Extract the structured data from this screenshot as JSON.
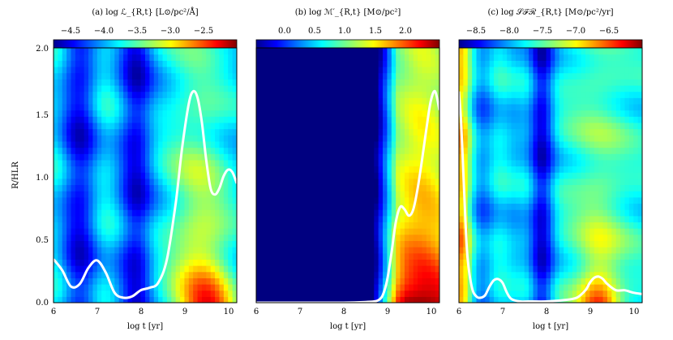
{
  "chart_data": [
    {
      "type": "heatmap",
      "title": "(a) log ℒ_{R,t} [L⊙/pc²/Å]",
      "xlabel": "log t [yr]",
      "ylabel": "R/HLR",
      "xlim": [
        6.0,
        10.2
      ],
      "ylim": [
        0.0,
        2.05
      ],
      "x_ticks": [
        "6",
        "7",
        "8",
        "9",
        "10"
      ],
      "y_ticks": [
        "0.0",
        "0.5",
        "1.0",
        "1.5",
        "2.0"
      ],
      "colorbar": {
        "range": [
          -4.9,
          -2.15
        ],
        "ticks": [
          "−4.5",
          "−4.0",
          "−3.5",
          "−3.0",
          "−2.5"
        ],
        "colormap": "jet"
      },
      "curve": {
        "color": "#ffffff",
        "x": [
          6.0,
          6.2,
          6.4,
          6.6,
          6.8,
          7.0,
          7.2,
          7.4,
          7.6,
          7.8,
          8.0,
          8.2,
          8.4,
          8.6,
          8.8,
          8.95,
          9.1,
          9.2,
          9.3,
          9.4,
          9.5,
          9.6,
          9.7,
          9.8,
          9.9,
          10.0,
          10.1,
          10.2
        ],
        "y": [
          0.35,
          0.26,
          0.13,
          0.15,
          0.28,
          0.34,
          0.24,
          0.08,
          0.04,
          0.05,
          0.1,
          0.12,
          0.16,
          0.35,
          0.8,
          1.25,
          1.6,
          1.7,
          1.65,
          1.45,
          1.15,
          0.92,
          0.87,
          0.92,
          1.02,
          1.07,
          1.05,
          0.96
        ]
      }
    },
    {
      "type": "heatmap",
      "title": "(b) log ℳ′_{R,t} [M⊙/pc²]",
      "xlabel": "log t [yr]",
      "ylabel": "",
      "xlim": [
        6.0,
        10.2
      ],
      "ylim": [
        0.0,
        2.05
      ],
      "x_ticks": [
        "6",
        "7",
        "8",
        "9",
        "10"
      ],
      "y_ticks": [],
      "colorbar": {
        "range": [
          -0.35,
          2.45
        ],
        "ticks": [
          "0.0",
          "0.5",
          "1.0",
          "1.5",
          "2.0"
        ],
        "colormap": "jet"
      },
      "curve": {
        "color": "#ffffff",
        "x": [
          6.0,
          6.5,
          7.0,
          7.5,
          8.0,
          8.5,
          8.7,
          8.8,
          8.9,
          9.0,
          9.1,
          9.2,
          9.3,
          9.4,
          9.5,
          9.6,
          9.7,
          9.8,
          9.9,
          10.0,
          10.1,
          10.2
        ],
        "y": [
          0.0,
          0.0,
          0.0,
          0.0,
          0.0,
          0.005,
          0.01,
          0.02,
          0.06,
          0.18,
          0.4,
          0.65,
          0.77,
          0.75,
          0.7,
          0.75,
          0.92,
          1.15,
          1.4,
          1.62,
          1.7,
          1.55
        ]
      }
    },
    {
      "type": "heatmap",
      "title": "(c) log 𝒮ℱℛ_{R,t} [M⊙/pc²/yr]",
      "xlabel": "log t [yr]",
      "ylabel": "",
      "xlim": [
        6.0,
        10.2
      ],
      "ylim": [
        0.0,
        2.05
      ],
      "x_ticks": [
        "6",
        "7",
        "8",
        "9",
        "10"
      ],
      "y_ticks": [],
      "colorbar": {
        "range": [
          -8.9,
          -6.15
        ],
        "ticks": [
          "−8.5",
          "−8.0",
          "−7.5",
          "−7.0",
          "−6.5"
        ],
        "colormap": "jet"
      },
      "curve": {
        "color": "#ffffff",
        "x": [
          6.0,
          6.05,
          6.1,
          6.15,
          6.2,
          6.3,
          6.4,
          6.5,
          6.6,
          6.7,
          6.8,
          6.9,
          7.0,
          7.1,
          7.2,
          7.4,
          7.6,
          8.0,
          8.4,
          8.7,
          8.9,
          9.0,
          9.1,
          9.2,
          9.3,
          9.4,
          9.6,
          9.8,
          10.0,
          10.2
        ],
        "y": [
          1.7,
          1.45,
          1.05,
          0.65,
          0.35,
          0.12,
          0.05,
          0.04,
          0.06,
          0.13,
          0.18,
          0.19,
          0.16,
          0.08,
          0.03,
          0.01,
          0.01,
          0.01,
          0.02,
          0.04,
          0.1,
          0.16,
          0.2,
          0.21,
          0.19,
          0.15,
          0.1,
          0.1,
          0.08,
          0.07
        ]
      }
    }
  ]
}
